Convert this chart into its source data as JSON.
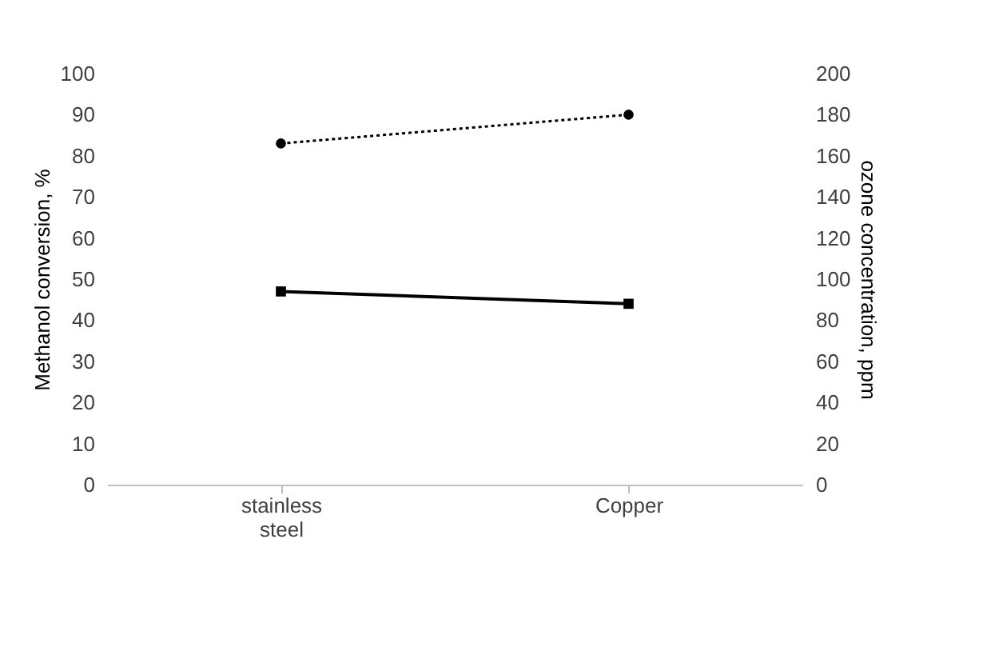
{
  "chart_data": {
    "type": "line",
    "ylabel": "Methanol conversion, %",
    "y2label": "ozone concentration, ppm",
    "categories": [
      "stainless steel",
      "Copper"
    ],
    "series": [
      {
        "values": [
          83,
          90
        ],
        "color": "#000000",
        "line_style": "dotted",
        "marker": "circle"
      },
      {
        "values": [
          94,
          88
        ],
        "color": "#000000",
        "line_style": "solid",
        "marker": "square",
        "axis": "y2"
      }
    ],
    "ylim": [
      0,
      100
    ],
    "yticks": [
      0,
      10,
      20,
      30,
      40,
      50,
      60,
      70,
      80,
      90,
      100
    ],
    "y2lim": [
      0,
      200
    ],
    "y2ticks": [
      0,
      20,
      40,
      60,
      80,
      100,
      120,
      140,
      160,
      180,
      200
    ],
    "grid": false
  }
}
